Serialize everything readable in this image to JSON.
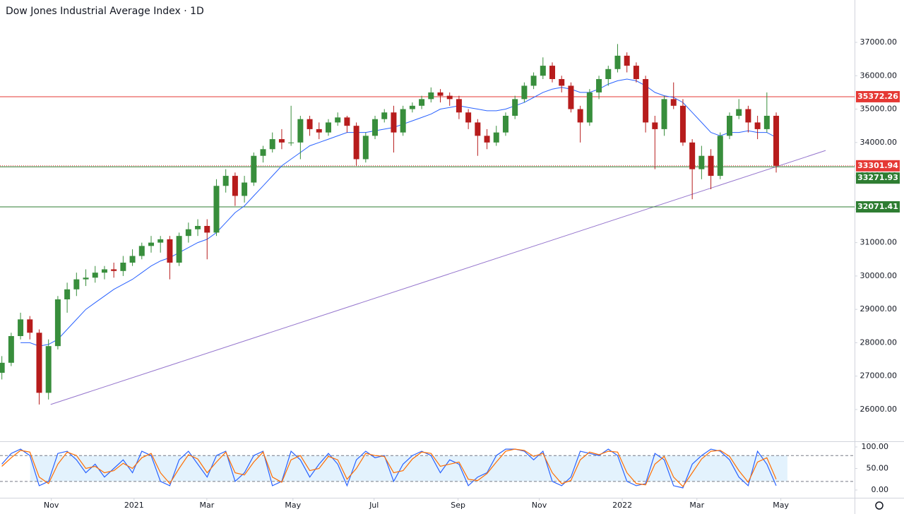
{
  "chart_data": {
    "type": "candlestick",
    "title": "Dow Jones Industrial Average Index · 1D",
    "up_color": "#388e3c",
    "down_color": "#b71c1c",
    "candles": [
      [
        27100,
        27600,
        26900,
        27400
      ],
      [
        27400,
        28300,
        27300,
        28200
      ],
      [
        28200,
        28900,
        28100,
        28700
      ],
      [
        28700,
        28800,
        28100,
        28300
      ],
      [
        28300,
        28400,
        26150,
        26500
      ],
      [
        26500,
        28100,
        26300,
        27900
      ],
      [
        27900,
        29400,
        27800,
        29300
      ],
      [
        29300,
        29800,
        28900,
        29600
      ],
      [
        29600,
        30100,
        29400,
        29900
      ],
      [
        29900,
        30200,
        29700,
        29950
      ],
      [
        29950,
        30300,
        29800,
        30100
      ],
      [
        30100,
        30300,
        29900,
        30200
      ],
      [
        30200,
        30400,
        29950,
        30150
      ],
      [
        30150,
        30600,
        30000,
        30400
      ],
      [
        30400,
        30800,
        30300,
        30600
      ],
      [
        30600,
        31000,
        30500,
        30900
      ],
      [
        30900,
        31200,
        30700,
        31000
      ],
      [
        31000,
        31200,
        30700,
        31100
      ],
      [
        31100,
        31200,
        29900,
        30400
      ],
      [
        30400,
        31300,
        30300,
        31200
      ],
      [
        31200,
        31600,
        31000,
        31400
      ],
      [
        31400,
        31700,
        31200,
        31500
      ],
      [
        31500,
        31700,
        30500,
        31300
      ],
      [
        31300,
        32900,
        31200,
        32700
      ],
      [
        32700,
        33200,
        32500,
        33000
      ],
      [
        33000,
        33100,
        32100,
        32400
      ],
      [
        32400,
        33000,
        32200,
        32800
      ],
      [
        32800,
        33700,
        32700,
        33600
      ],
      [
        33600,
        33900,
        33400,
        33800
      ],
      [
        33800,
        34300,
        33700,
        34100
      ],
      [
        34100,
        34400,
        33800,
        34000
      ],
      [
        34000,
        35100,
        33900,
        34000
      ],
      [
        34000,
        34800,
        33500,
        34700
      ],
      [
        34700,
        34800,
        34200,
        34400
      ],
      [
        34400,
        34600,
        34100,
        34300
      ],
      [
        34300,
        34700,
        34200,
        34600
      ],
      [
        34600,
        34900,
        34500,
        34750
      ],
      [
        34750,
        34800,
        34300,
        34500
      ],
      [
        34500,
        34600,
        33300,
        33500
      ],
      [
        33500,
        34300,
        33400,
        34200
      ],
      [
        34200,
        34800,
        34100,
        34700
      ],
      [
        34700,
        35000,
        34600,
        34900
      ],
      [
        34900,
        35100,
        33700,
        34300
      ],
      [
        34300,
        35100,
        34200,
        35000
      ],
      [
        35000,
        35200,
        34900,
        35100
      ],
      [
        35100,
        35400,
        35000,
        35300
      ],
      [
        35300,
        35650,
        35200,
        35500
      ],
      [
        35500,
        35600,
        35200,
        35400
      ],
      [
        35400,
        35500,
        35100,
        35300
      ],
      [
        35300,
        35400,
        34700,
        34900
      ],
      [
        34900,
        35000,
        34400,
        34600
      ],
      [
        34600,
        34700,
        33600,
        34200
      ],
      [
        34200,
        34400,
        33800,
        34000
      ],
      [
        34000,
        34500,
        33900,
        34300
      ],
      [
        34300,
        34900,
        34200,
        34800
      ],
      [
        34800,
        35400,
        34700,
        35300
      ],
      [
        35300,
        35800,
        35200,
        35700
      ],
      [
        35700,
        36100,
        35600,
        36000
      ],
      [
        36000,
        36550,
        35900,
        36300
      ],
      [
        36300,
        36400,
        35800,
        35900
      ],
      [
        35900,
        36000,
        35500,
        35700
      ],
      [
        35700,
        35800,
        34900,
        35000
      ],
      [
        35000,
        35100,
        34000,
        34600
      ],
      [
        34600,
        35600,
        34500,
        35500
      ],
      [
        35500,
        36000,
        35300,
        35900
      ],
      [
        35900,
        36300,
        35700,
        36200
      ],
      [
        36200,
        36950,
        36100,
        36600
      ],
      [
        36600,
        36700,
        36100,
        36300
      ],
      [
        36300,
        36400,
        35800,
        35900
      ],
      [
        35900,
        36000,
        34300,
        34600
      ],
      [
        34600,
        34800,
        33200,
        34400
      ],
      [
        34400,
        35400,
        34200,
        35300
      ],
      [
        35300,
        35800,
        35000,
        35100
      ],
      [
        35100,
        35300,
        33900,
        34000
      ],
      [
        34000,
        34100,
        32300,
        33200
      ],
      [
        33200,
        33900,
        32900,
        33600
      ],
      [
        33600,
        33800,
        32600,
        33000
      ],
      [
        33000,
        34300,
        32900,
        34200
      ],
      [
        34200,
        34900,
        34100,
        34800
      ],
      [
        34800,
        35300,
        34700,
        35000
      ],
      [
        35000,
        35100,
        34300,
        34600
      ],
      [
        34600,
        34800,
        34100,
        34400
      ],
      [
        34400,
        35500,
        34300,
        34800
      ],
      [
        34800,
        34900,
        33100,
        33300
      ]
    ],
    "moving_average": {
      "color": "#2962ff",
      "values": [
        null,
        null,
        28000,
        28000,
        27900,
        27950,
        28100,
        28400,
        28700,
        29000,
        29200,
        29400,
        29600,
        29750,
        29900,
        30100,
        30300,
        30450,
        30550,
        30700,
        30850,
        31000,
        31100,
        31300,
        31600,
        31900,
        32100,
        32400,
        32700,
        33000,
        33300,
        33500,
        33700,
        33900,
        34000,
        34100,
        34200,
        34300,
        34300,
        34300,
        34350,
        34400,
        34450,
        34550,
        34650,
        34750,
        34850,
        35000,
        35050,
        35100,
        35050,
        35000,
        34950,
        34950,
        35000,
        35100,
        35200,
        35350,
        35500,
        35600,
        35650,
        35600,
        35500,
        35500,
        35600,
        35750,
        35850,
        35900,
        35850,
        35700,
        35500,
        35400,
        35350,
        35200,
        34900,
        34600,
        34300,
        34200,
        34300,
        34300,
        34350,
        34300,
        34300,
        34150
      ]
    },
    "trendline": {
      "color": "#9575cd",
      "x": [
        5.23,
        88.3
      ],
      "y": [
        26150,
        33760
      ]
    },
    "levels": [
      {
        "value": 35372.26,
        "color": "#e53935",
        "style": "solid"
      },
      {
        "value": 33301.94,
        "color": "#e53935",
        "style": "dotted"
      },
      {
        "value": 33271.93,
        "color": "#2e7d32",
        "style": "solid"
      },
      {
        "value": 32071.41,
        "color": "#2e7d32",
        "style": "solid"
      }
    ],
    "xlim": [
      -0.2,
      91.4
    ],
    "ylim": [
      25048,
      38269
    ],
    "yticks": [
      {
        "value": 26000,
        "label": "26000.00"
      },
      {
        "value": 27000,
        "label": "27000.00"
      },
      {
        "value": 28000,
        "label": "28000.00"
      },
      {
        "value": 29000,
        "label": "29000.00"
      },
      {
        "value": 30000,
        "label": "30000.00"
      },
      {
        "value": 31000,
        "label": "31000.00"
      },
      {
        "value": 32000,
        "label": "32000.00"
      },
      {
        "value": 33000,
        "label": "33000.00"
      },
      {
        "value": 34000,
        "label": "34000.00"
      },
      {
        "value": 35000,
        "label": "35000.00"
      },
      {
        "value": 36000,
        "label": "36000.00"
      },
      {
        "value": 37000,
        "label": "37000.00"
      }
    ],
    "xticks": [
      {
        "value": 5.3,
        "label": "Nov"
      },
      {
        "value": 14.17,
        "label": "2021"
      },
      {
        "value": 21.97,
        "label": "Mar"
      },
      {
        "value": 31.2,
        "label": "May"
      },
      {
        "value": 39.9,
        "label": "Jul"
      },
      {
        "value": 48.9,
        "label": "Sep"
      },
      {
        "value": 57.6,
        "label": "Nov"
      },
      {
        "value": 66.5,
        "label": "2022"
      },
      {
        "value": 74.5,
        "label": "Mar"
      },
      {
        "value": 83.5,
        "label": "May"
      }
    ],
    "oscillator": {
      "ylim": [
        -18,
        111.5
      ],
      "yticks": [
        {
          "value": 100,
          "label": "100.00"
        },
        {
          "value": 50,
          "label": "50.00"
        },
        {
          "value": 0,
          "label": "0.00"
        }
      ],
      "bands": [
        20,
        80
      ],
      "band_color": "#e3f2fd",
      "series": [
        {
          "color": "#2962ff",
          "values": [
            60,
            85,
            95,
            80,
            10,
            20,
            85,
            90,
            70,
            40,
            60,
            30,
            50,
            70,
            40,
            90,
            80,
            20,
            10,
            70,
            90,
            60,
            30,
            80,
            90,
            20,
            40,
            80,
            90,
            10,
            20,
            90,
            70,
            30,
            60,
            85,
            60,
            10,
            70,
            90,
            75,
            80,
            20,
            60,
            80,
            90,
            80,
            40,
            70,
            60,
            10,
            30,
            40,
            80,
            95,
            95,
            90,
            70,
            90,
            20,
            10,
            30,
            90,
            85,
            80,
            95,
            80,
            20,
            10,
            15,
            85,
            70,
            10,
            5,
            60,
            80,
            95,
            90,
            70,
            30,
            10,
            90,
            60,
            10
          ]
        },
        {
          "color": "#ff6d00",
          "values": [
            55,
            75,
            92,
            88,
            30,
            15,
            60,
            88,
            80,
            50,
            55,
            40,
            45,
            62,
            50,
            75,
            85,
            40,
            15,
            50,
            82,
            72,
            40,
            65,
            88,
            40,
            35,
            65,
            88,
            30,
            18,
            70,
            80,
            45,
            50,
            78,
            70,
            25,
            50,
            85,
            80,
            78,
            40,
            45,
            72,
            88,
            85,
            55,
            60,
            65,
            25,
            22,
            38,
            65,
            90,
            95,
            92,
            78,
            85,
            40,
            15,
            22,
            70,
            88,
            82,
            90,
            88,
            40,
            15,
            12,
            60,
            78,
            30,
            8,
            40,
            72,
            90,
            92,
            78,
            45,
            18,
            65,
            75,
            25
          ]
        }
      ]
    }
  }
}
